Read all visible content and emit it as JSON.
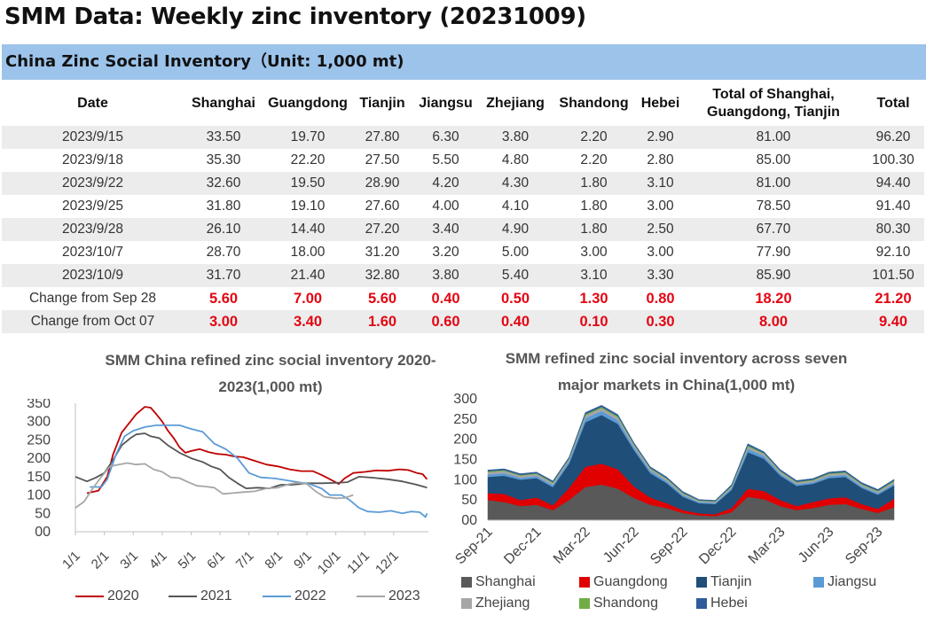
{
  "title": "SMM Data: Weekly zinc inventory (20231009)",
  "table": {
    "banner": "China Zinc Social Inventory（Unit: 1,000 mt)",
    "headers": [
      "Date",
      "Shanghai",
      "Guangdong",
      "Tianjin",
      "Jiangsu",
      "Zhejiang",
      "Shandong",
      "Hebei",
      "Total of Shanghai, Guangdong, Tianjin",
      "Total"
    ],
    "rows": [
      [
        "2023/9/15",
        "33.50",
        "19.70",
        "27.80",
        "6.30",
        "3.80",
        "2.20",
        "2.90",
        "81.00",
        "96.20"
      ],
      [
        "2023/9/18",
        "35.30",
        "22.20",
        "27.50",
        "5.50",
        "4.80",
        "2.20",
        "2.80",
        "85.00",
        "100.30"
      ],
      [
        "2023/9/22",
        "32.60",
        "19.50",
        "28.90",
        "4.20",
        "4.30",
        "1.80",
        "3.10",
        "81.00",
        "94.40"
      ],
      [
        "2023/9/25",
        "31.80",
        "19.10",
        "27.60",
        "4.00",
        "4.10",
        "1.80",
        "3.00",
        "78.50",
        "91.40"
      ],
      [
        "2023/9/28",
        "26.10",
        "14.40",
        "27.20",
        "3.40",
        "4.90",
        "1.80",
        "2.50",
        "67.70",
        "80.30"
      ],
      [
        "2023/10/7",
        "28.70",
        "18.00",
        "31.20",
        "3.20",
        "5.00",
        "3.00",
        "3.00",
        "77.90",
        "92.10"
      ],
      [
        "2023/10/9",
        "31.70",
        "21.40",
        "32.80",
        "3.80",
        "5.40",
        "3.10",
        "3.30",
        "85.90",
        "101.50"
      ]
    ],
    "changes": [
      [
        "Change from Sep 28",
        "5.60",
        "7.00",
        "5.60",
        "0.40",
        "0.50",
        "1.30",
        "0.80",
        "18.20",
        "21.20"
      ],
      [
        "Change from Oct 07",
        "3.00",
        "3.40",
        "1.60",
        "0.60",
        "0.40",
        "0.10",
        "0.30",
        "8.00",
        "9.40"
      ]
    ]
  },
  "chart_data": [
    {
      "type": "line",
      "title": "SMM China refined zinc social inventory 2020-2023(1,000 mt)",
      "xlabel": "",
      "ylabel": "",
      "ylim": [
        0,
        350
      ],
      "yticks": [
        "00",
        "50",
        "100",
        "150",
        "200",
        "250",
        "300",
        "350"
      ],
      "x_ticks": [
        "1/1",
        "2/1",
        "3/1",
        "4/1",
        "5/1",
        "6/1",
        "7/1",
        "8/1",
        "9/1",
        "10/1",
        "11/1",
        "12/1"
      ],
      "x_unit": "month of year",
      "grid": false,
      "legend": "bottom",
      "series": [
        {
          "name": "2020",
          "color": "#c00000",
          "points": [
            [
              1.4,
              105
            ],
            [
              1.8,
              112
            ],
            [
              2.1,
              150
            ],
            [
              2.3,
              210
            ],
            [
              2.6,
              270
            ],
            [
              2.9,
              300
            ],
            [
              3.1,
              320
            ],
            [
              3.4,
              340
            ],
            [
              3.6,
              338
            ],
            [
              3.8,
              320
            ],
            [
              4.0,
              300
            ],
            [
              4.2,
              275
            ],
            [
              4.4,
              255
            ],
            [
              4.6,
              230
            ],
            [
              4.8,
              215
            ],
            [
              5.0,
              220
            ],
            [
              5.3,
              225
            ],
            [
              5.6,
              217
            ],
            [
              5.9,
              212
            ],
            [
              6.2,
              210
            ],
            [
              6.5,
              205
            ],
            [
              6.8,
              203
            ],
            [
              7.2,
              193
            ],
            [
              7.6,
              183
            ],
            [
              8.0,
              178
            ],
            [
              8.4,
              170
            ],
            [
              8.8,
              165
            ],
            [
              9.2,
              165
            ],
            [
              9.5,
              155
            ],
            [
              9.8,
              143
            ],
            [
              10.1,
              130
            ],
            [
              10.3,
              145
            ],
            [
              10.6,
              160
            ],
            [
              11.0,
              163
            ],
            [
              11.4,
              167
            ],
            [
              11.8,
              166
            ],
            [
              12.2,
              170
            ],
            [
              12.5,
              168
            ],
            [
              12.8,
              160
            ],
            [
              13.0,
              157
            ],
            [
              13.15,
              143
            ]
          ]
        },
        {
          "name": "2021",
          "color": "#555555",
          "points": [
            [
              1.0,
              150
            ],
            [
              1.4,
              137
            ],
            [
              1.7,
              147
            ],
            [
              2.0,
              160
            ],
            [
              2.3,
              195
            ],
            [
              2.6,
              235
            ],
            [
              2.9,
              255
            ],
            [
              3.1,
              265
            ],
            [
              3.4,
              268
            ],
            [
              3.6,
              260
            ],
            [
              3.9,
              255
            ],
            [
              4.2,
              235
            ],
            [
              4.6,
              215
            ],
            [
              5.0,
              200
            ],
            [
              5.4,
              190
            ],
            [
              5.7,
              178
            ],
            [
              6.0,
              170
            ],
            [
              6.3,
              148
            ],
            [
              6.6,
              132
            ],
            [
              6.9,
              118
            ],
            [
              7.3,
              120
            ],
            [
              7.7,
              118
            ],
            [
              8.1,
              128
            ],
            [
              8.5,
              128
            ],
            [
              9.0,
              132
            ],
            [
              9.5,
              132
            ],
            [
              10.0,
              133
            ],
            [
              10.4,
              135
            ],
            [
              10.8,
              150
            ],
            [
              11.3,
              147
            ],
            [
              11.8,
              143
            ],
            [
              12.3,
              137
            ],
            [
              12.8,
              128
            ],
            [
              13.15,
              120
            ]
          ]
        },
        {
          "name": "2022",
          "color": "#5b9bd5",
          "points": [
            [
              1.5,
              122
            ],
            [
              1.9,
              122
            ],
            [
              2.1,
              143
            ],
            [
              2.4,
              210
            ],
            [
              2.7,
              260
            ],
            [
              3.0,
              275
            ],
            [
              3.4,
              285
            ],
            [
              3.8,
              290
            ],
            [
              4.2,
              290
            ],
            [
              4.6,
              290
            ],
            [
              5.0,
              280
            ],
            [
              5.4,
              272
            ],
            [
              5.8,
              240
            ],
            [
              6.2,
              225
            ],
            [
              6.6,
              200
            ],
            [
              7.0,
              160
            ],
            [
              7.4,
              148
            ],
            [
              7.9,
              145
            ],
            [
              8.3,
              140
            ],
            [
              8.7,
              135
            ],
            [
              9.1,
              130
            ],
            [
              9.5,
              118
            ],
            [
              9.8,
              100
            ],
            [
              10.2,
              100
            ],
            [
              10.5,
              85
            ],
            [
              10.8,
              65
            ],
            [
              11.1,
              55
            ],
            [
              11.5,
              53
            ],
            [
              11.9,
              57
            ],
            [
              12.3,
              50
            ],
            [
              12.6,
              55
            ],
            [
              12.9,
              53
            ],
            [
              13.1,
              40
            ],
            [
              13.15,
              50
            ]
          ]
        },
        {
          "name": "2023",
          "color": "#a6a6a6",
          "points": [
            [
              1.0,
              65
            ],
            [
              1.3,
              82
            ],
            [
              1.6,
              118
            ],
            [
              1.9,
              150
            ],
            [
              2.2,
              178
            ],
            [
              2.5,
              183
            ],
            [
              2.8,
              187
            ],
            [
              3.1,
              183
            ],
            [
              3.4,
              185
            ],
            [
              3.7,
              170
            ],
            [
              4.0,
              163
            ],
            [
              4.3,
              148
            ],
            [
              4.6,
              146
            ],
            [
              4.9,
              135
            ],
            [
              5.2,
              125
            ],
            [
              5.5,
              123
            ],
            [
              5.8,
              120
            ],
            [
              6.1,
              103
            ],
            [
              6.4,
              105
            ],
            [
              6.8,
              108
            ],
            [
              7.2,
              110
            ],
            [
              7.6,
              118
            ],
            [
              8.0,
              120
            ],
            [
              8.4,
              130
            ],
            [
              8.7,
              133
            ],
            [
              9.0,
              130
            ],
            [
              9.3,
              110
            ],
            [
              9.6,
              95
            ],
            [
              10.0,
              91
            ],
            [
              10.3,
              92
            ],
            [
              10.6,
              100
            ]
          ]
        }
      ]
    },
    {
      "type": "area",
      "stacked": true,
      "title": "SMM refined zinc social inventory across seven major markets in China(1,000 mt)",
      "xlabel": "",
      "ylabel": "",
      "ylim": [
        0,
        300
      ],
      "yticks": [
        "00",
        "50",
        "100",
        "150",
        "200",
        "250",
        "300"
      ],
      "x_ticks": [
        "Sep-21",
        "Dec-21",
        "Mar-22",
        "Jun-22",
        "Sep-22",
        "Dec-22",
        "Mar-23",
        "Jun-23",
        "Sep-23"
      ],
      "x_unit": "months since Sep-21",
      "legend": "bottom",
      "x": [
        0,
        1,
        2,
        3,
        4,
        5,
        6,
        7,
        8,
        9,
        10,
        11,
        12,
        13,
        14,
        15,
        16,
        17,
        18,
        19,
        20,
        21,
        22,
        23,
        24,
        25
      ],
      "series": [
        {
          "name": "Shanghai",
          "color": "#595959",
          "values": [
            50,
            45,
            35,
            38,
            25,
            50,
            82,
            88,
            78,
            55,
            38,
            30,
            18,
            12,
            10,
            20,
            58,
            52,
            35,
            25,
            30,
            38,
            40,
            28,
            18,
            32
          ]
        },
        {
          "name": "Guangdong",
          "color": "#e00000",
          "values": [
            17,
            20,
            15,
            18,
            12,
            30,
            50,
            52,
            48,
            28,
            18,
            12,
            7,
            5,
            5,
            10,
            20,
            20,
            15,
            10,
            15,
            16,
            17,
            12,
            10,
            21
          ]
        },
        {
          "name": "Tianjin",
          "color": "#1f4e79",
          "values": [
            40,
            45,
            50,
            48,
            45,
            60,
            110,
            120,
            112,
            90,
            60,
            50,
            33,
            25,
            25,
            45,
            90,
            80,
            60,
            50,
            45,
            50,
            50,
            40,
            35,
            33
          ]
        },
        {
          "name": "Jiangsu",
          "color": "#5b9bd5",
          "values": [
            6,
            6,
            5,
            5,
            5,
            6,
            10,
            10,
            9,
            7,
            6,
            5,
            4,
            3,
            3,
            4,
            8,
            7,
            5,
            4,
            4,
            5,
            5,
            4,
            4,
            4
          ]
        },
        {
          "name": "Zhejiang",
          "color": "#a6a6a6",
          "values": [
            6,
            6,
            5,
            5,
            5,
            5,
            7,
            7,
            7,
            6,
            5,
            5,
            4,
            3,
            3,
            4,
            6,
            5,
            5,
            4,
            4,
            5,
            5,
            4,
            4,
            5
          ]
        },
        {
          "name": "Shandong",
          "color": "#70ad47",
          "values": [
            2,
            2,
            2,
            2,
            2,
            2,
            3,
            3,
            3,
            2,
            2,
            2,
            2,
            1,
            1,
            2,
            3,
            2,
            2,
            2,
            2,
            2,
            2,
            2,
            2,
            3
          ]
        },
        {
          "name": "Hebei",
          "color": "#2e5c9a",
          "values": [
            3,
            3,
            3,
            3,
            3,
            3,
            4,
            4,
            4,
            3,
            3,
            3,
            3,
            2,
            2,
            3,
            4,
            3,
            3,
            3,
            3,
            3,
            3,
            3,
            3,
            3
          ]
        }
      ]
    }
  ]
}
